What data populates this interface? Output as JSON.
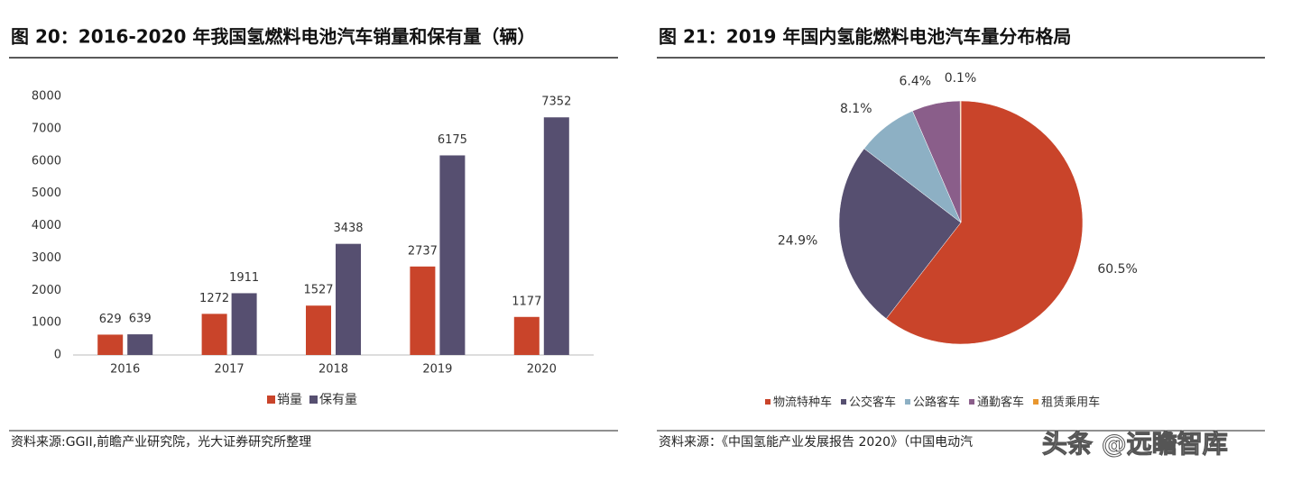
{
  "chart_data": [
    {
      "type": "bar",
      "title": "图 20：2016-2020 年我国氢燃料电池汽车销量和保有量（辆）",
      "categories": [
        "2016",
        "2017",
        "2018",
        "2019",
        "2020"
      ],
      "series": [
        {
          "name": "销量",
          "color": "#c9442a",
          "values": [
            629,
            1272,
            1527,
            2737,
            1177
          ]
        },
        {
          "name": "保有量",
          "color": "#564f70",
          "values": [
            639,
            1911,
            3438,
            6175,
            7352
          ]
        }
      ],
      "ylim": [
        0,
        8000
      ],
      "yticks": [
        0,
        1000,
        2000,
        3000,
        4000,
        5000,
        6000,
        7000,
        8000
      ],
      "source": "资料来源:GGII,前瞻产业研究院，光大证券研究所整理"
    },
    {
      "type": "pie",
      "title": "图 21：2019 年国内氢能燃料电池汽车量分布格局",
      "categories": [
        "物流特种车",
        "公交客车",
        "公路客车",
        "通勤客车",
        "租赁乘用车"
      ],
      "values": [
        60.5,
        24.9,
        8.1,
        6.4,
        0.1
      ],
      "value_labels": [
        "60.5%",
        "24.9%",
        "8.1%",
        "6.4%",
        "0.1%"
      ],
      "colors": [
        "#c9442a",
        "#564f70",
        "#8db0c4",
        "#8a5e8a",
        "#e8962e"
      ],
      "source": "资料来源：《中国氢能产业发展报告 2020》（中国电动汽"
    }
  ],
  "watermark": "头条 @远瞻智库"
}
